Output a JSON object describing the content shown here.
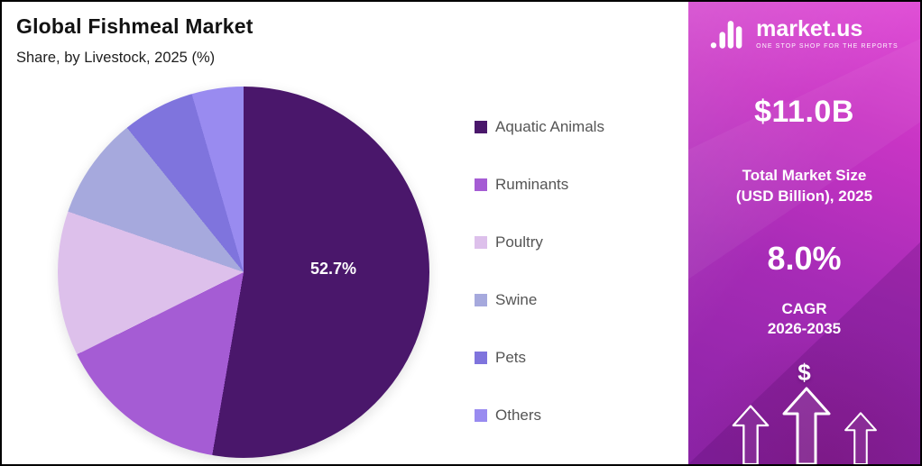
{
  "header": {
    "title": "Global Fishmeal Market",
    "subtitle": "Share, by Livestock, 2025 (%)"
  },
  "chart_data": {
    "type": "pie",
    "title": "Global Fishmeal Market",
    "subtitle": "Share, by Livestock, 2025 (%)",
    "unit": "%",
    "legend_position": "right",
    "start_angle_deg": 0,
    "slices": [
      {
        "label": "Aquatic Animals",
        "value": 52.7,
        "color": "#4a176b",
        "data_label": "52.7%"
      },
      {
        "label": "Ruminants",
        "value": 15.0,
        "color": "#a55cd4"
      },
      {
        "label": "Poultry",
        "value": 12.6,
        "color": "#ddc0eb"
      },
      {
        "label": "Swine",
        "value": 8.9,
        "color": "#a6a9dd"
      },
      {
        "label": "Pets",
        "value": 6.3,
        "color": "#7f74dd"
      },
      {
        "label": "Others",
        "value": 4.5,
        "color": "#998bf0"
      }
    ]
  },
  "side_panel": {
    "brand": {
      "name": "market.us",
      "tagline": "ONE STOP SHOP FOR THE REPORTS"
    },
    "market_size": {
      "value": "$11.0B",
      "label_line1": "Total Market Size",
      "label_line2": "(USD Billion), 2025"
    },
    "cagr": {
      "value": "8.0%",
      "label_line1": "CAGR",
      "label_line2": "2026-2035"
    },
    "dollar_symbol": "$",
    "colors": {
      "gradient_top": "#e04fd6",
      "gradient_bottom": "#8a23a5"
    }
  }
}
